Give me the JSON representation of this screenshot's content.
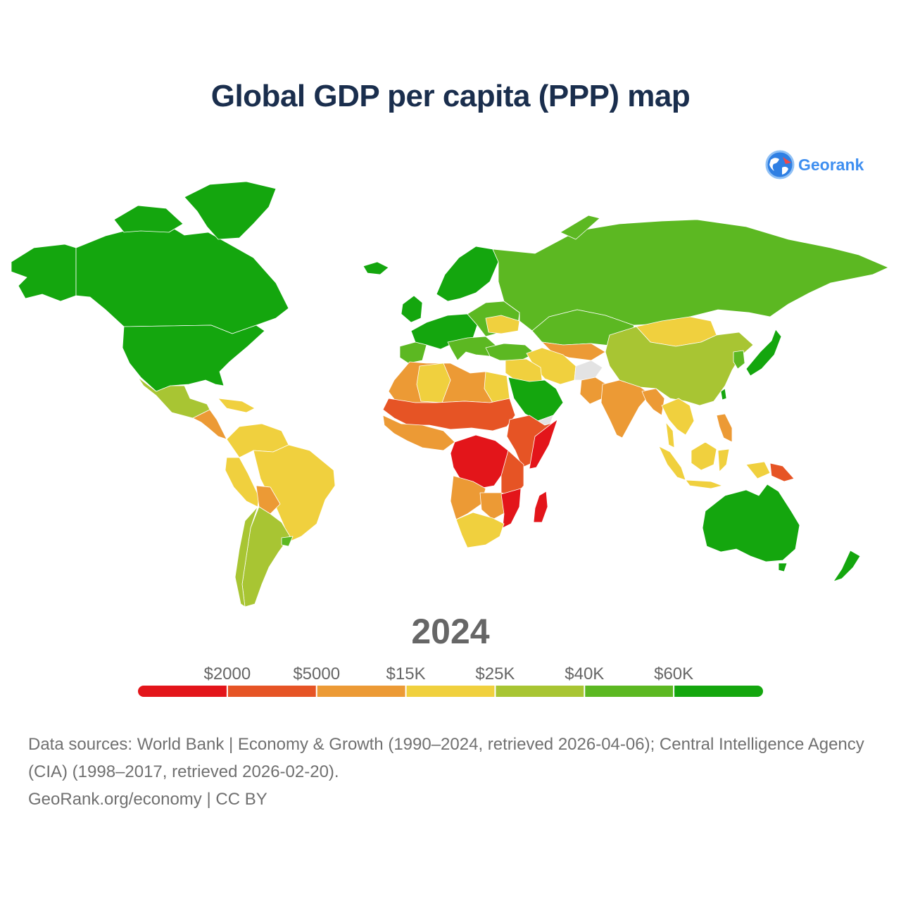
{
  "title": "Global GDP per capita (PPP) map",
  "logo": {
    "text": "Georank",
    "icon": "globe-icon"
  },
  "year": "2024",
  "legend": {
    "thresholds": [
      "$2000",
      "$5000",
      "$15K",
      "$25K",
      "$40K",
      "$60K"
    ],
    "colors": [
      "#e3151a",
      "#e65425",
      "#ec9a35",
      "#f0d03e",
      "#a8c533",
      "#5cb822",
      "#14a60e"
    ]
  },
  "map": {
    "no_data_color": "#e3e3e3",
    "border_color": "#ffffff"
  },
  "footer": {
    "sources": "Data sources: World Bank | Economy & Growth (1990–2024, retrieved 2026-04-06); Central Intelligence Agency (CIA) (1998–2017, retrieved 2026-02-20).",
    "credit": "GeoRank.org/economy | CC BY"
  }
}
